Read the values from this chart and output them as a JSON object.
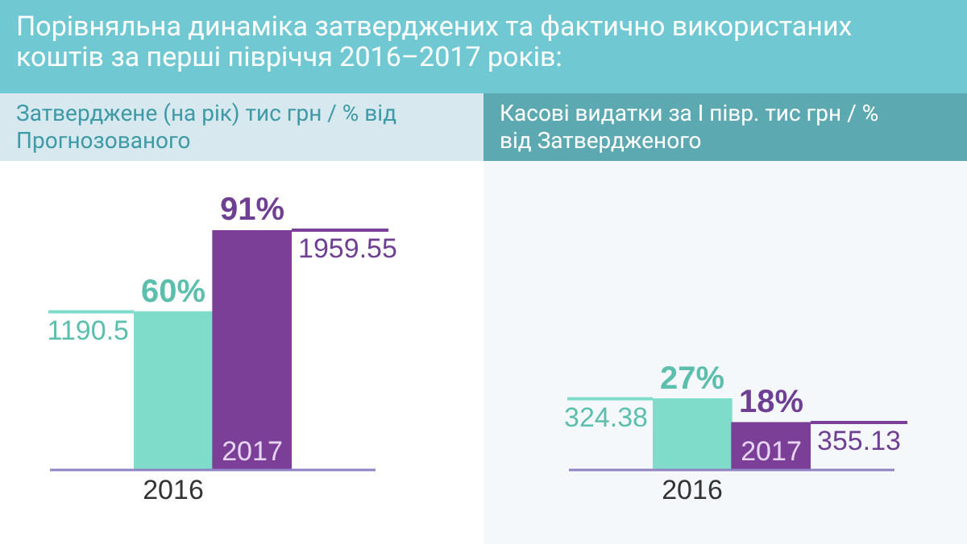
{
  "chart_data": [
    {
      "type": "bar",
      "title": "Порівняльна динаміка затверджених та фактично використаних коштів за перші півріччя 2016–2017 років:",
      "subtitle": "Затверджене (на рік) тис грн / % від Прогнозованого",
      "categories": [
        "2016",
        "2017"
      ],
      "values": [
        60,
        91
      ],
      "colors": [
        "#7fdccb",
        "#7b3f98"
      ],
      "value_labels": [
        "60%",
        "91%"
      ],
      "tick_labels": "x",
      "annotations": [
        {
          "text": "1190.5",
          "x": "2016",
          "y": 60
        },
        {
          "text": "1959.55",
          "x": "2017",
          "y": 91
        }
      ]
    },
    {
      "type": "bar",
      "subtitle": "Касові видатки за І півр. тис грн / % від Затвердженого",
      "categories": [
        "2016",
        "2017"
      ],
      "values": [
        27,
        18
      ],
      "colors": [
        "#7fdccb",
        "#7b3f98"
      ],
      "value_labels": [
        "27%",
        "18%"
      ],
      "tick_labels": "x",
      "annotations": [
        {
          "text": "324.38",
          "x": "2016",
          "y": 27
        },
        {
          "text": "355.13",
          "x": "2017",
          "y": 18
        }
      ]
    }
  ]
}
